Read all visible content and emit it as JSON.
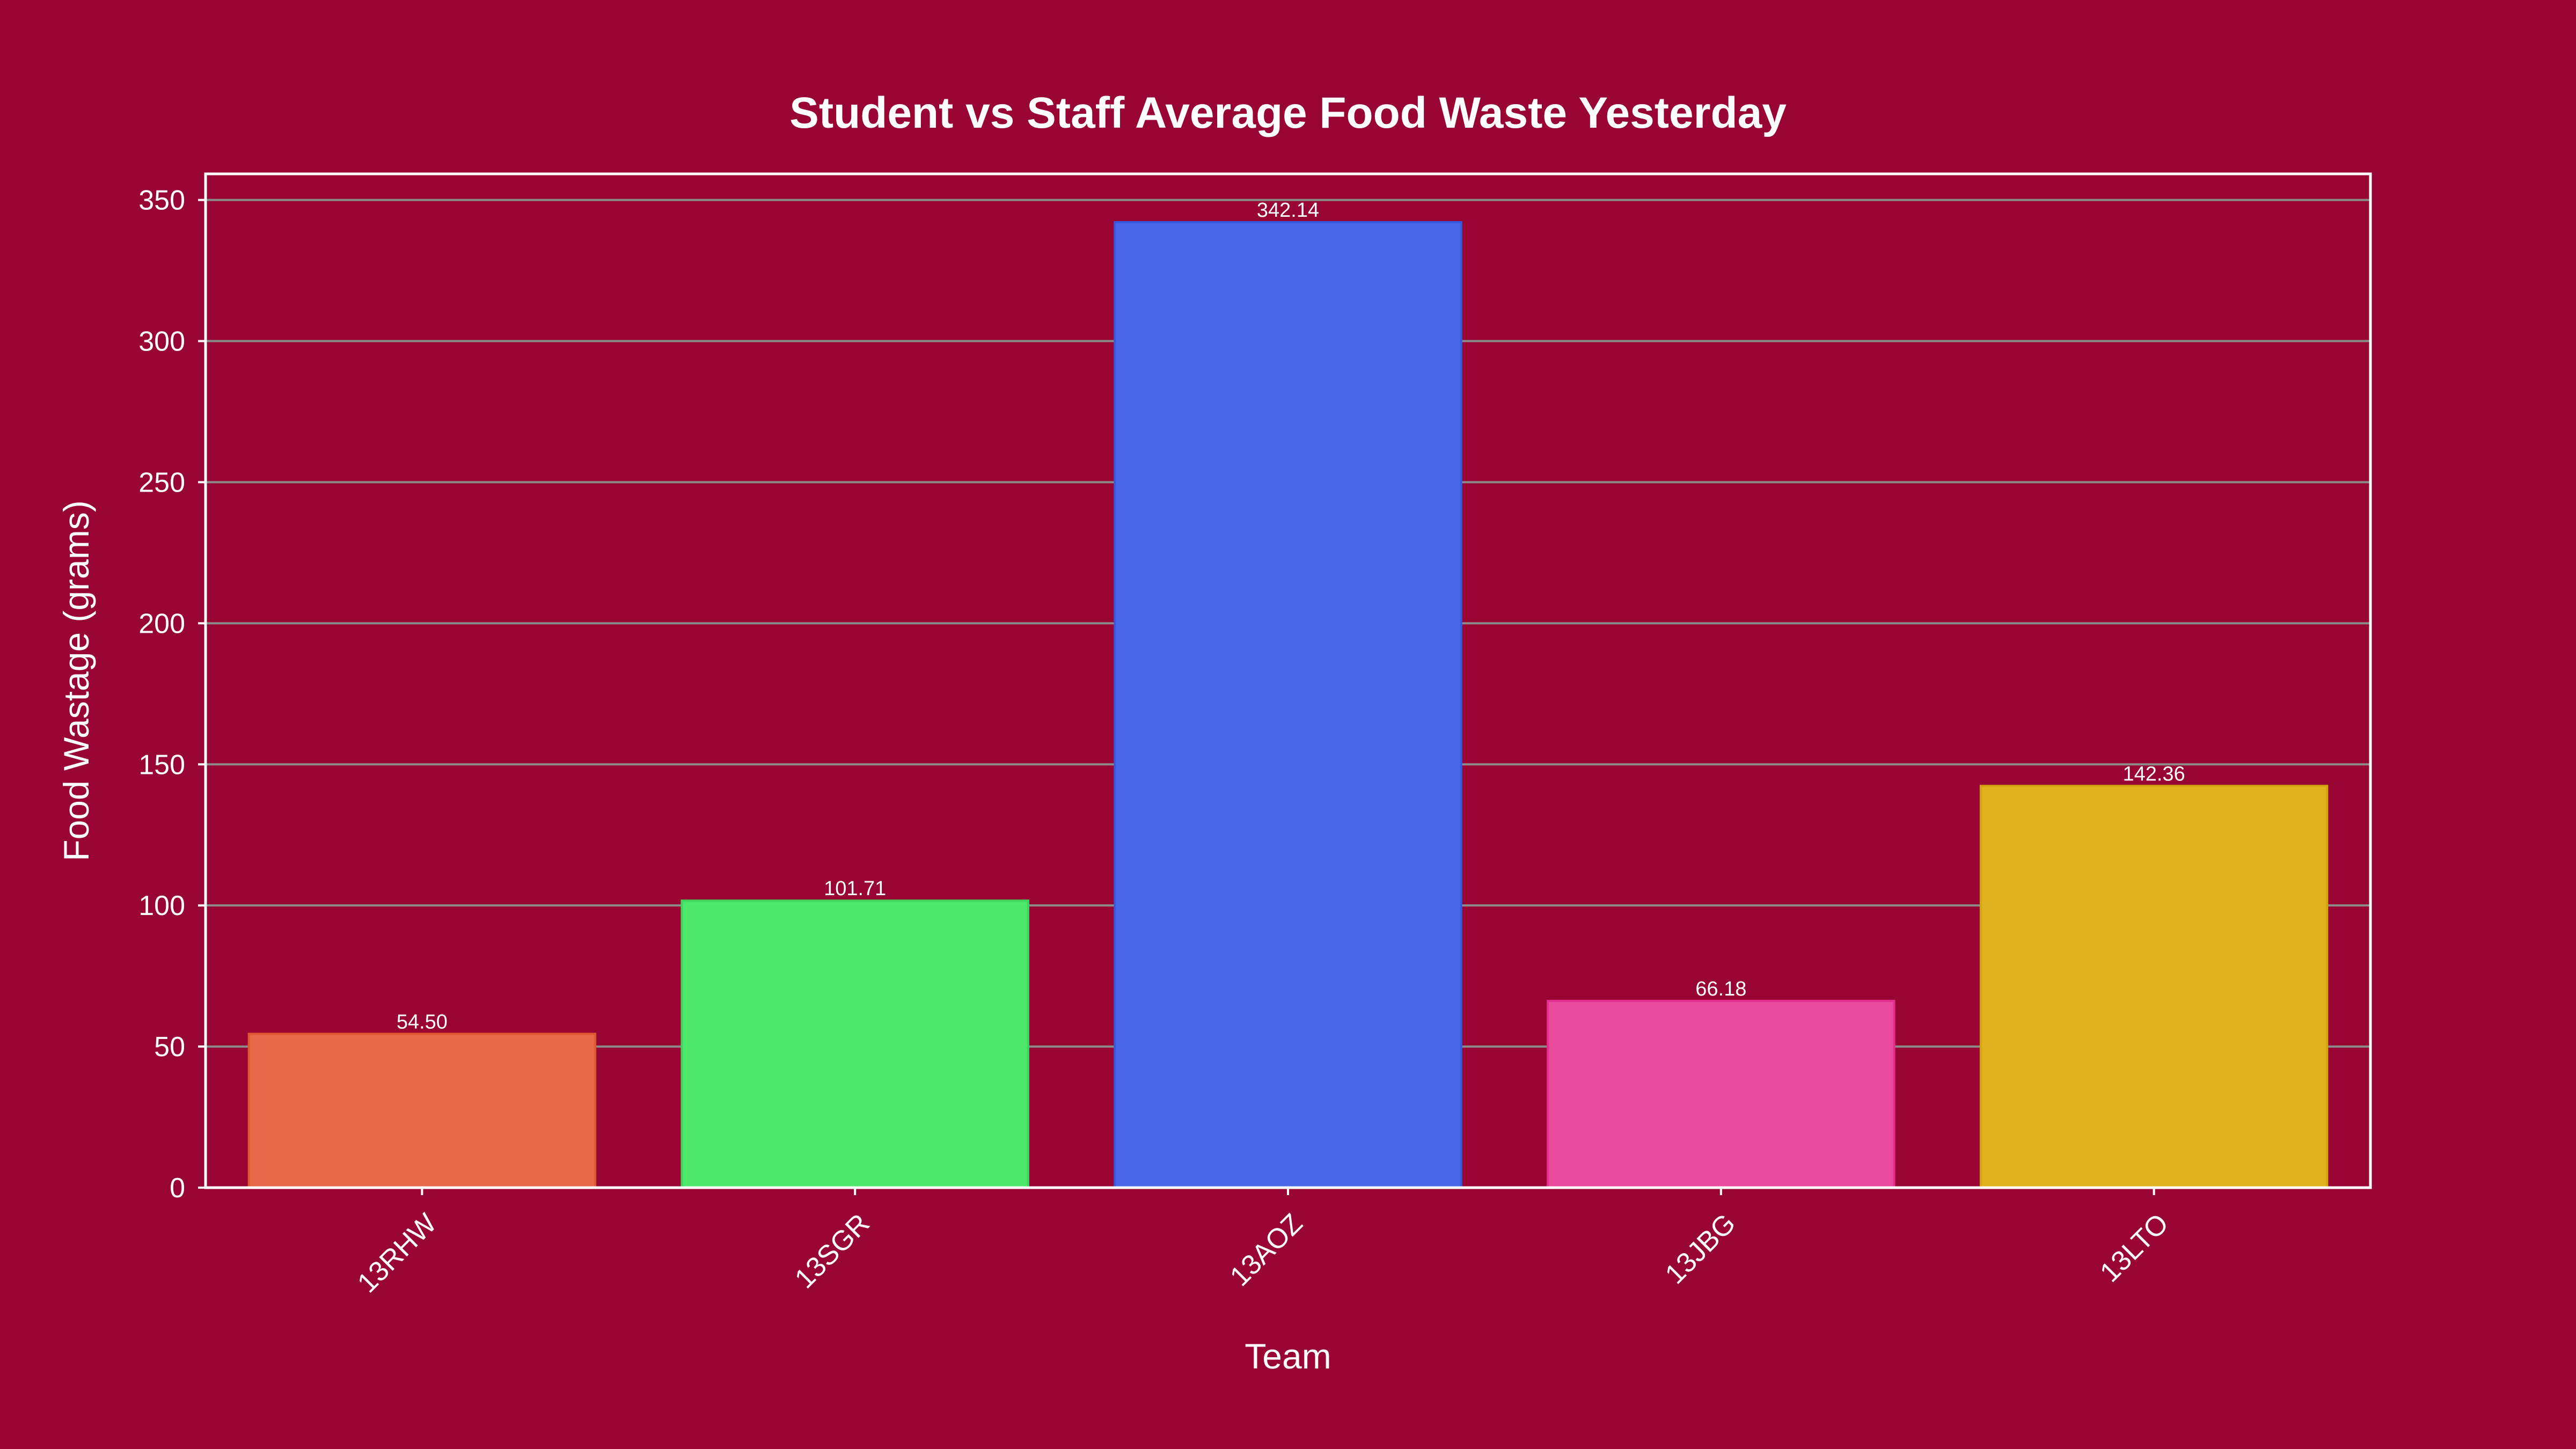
{
  "colors": {
    "background": "#990532",
    "grid": "#8c8c8c",
    "frame": "#ffffff",
    "text": "#ffffff"
  },
  "chart_data": {
    "type": "bar",
    "title": "Student vs Staff Average Food Waste Yesterday",
    "xlabel": "Team",
    "ylabel": "Food Wastage (grams)",
    "categories": [
      "13RHW",
      "13SGR",
      "13AOZ",
      "13JBG",
      "13LTO"
    ],
    "values": [
      54.5,
      101.71,
      342.14,
      66.18,
      142.36
    ],
    "value_labels": [
      "54.50",
      "101.71",
      "342.14",
      "66.18",
      "142.36"
    ],
    "bar_colors": [
      "#e8684a",
      "#4de86c",
      "#4a68e8",
      "#e84a9e",
      "#dfb21f"
    ],
    "bar_edge_colors": [
      "#e0582e",
      "#3fd65e",
      "#3558e0",
      "#e32d8f",
      "#d4a512"
    ],
    "ylim": [
      0,
      359.25
    ],
    "yticks": [
      0,
      50,
      100,
      150,
      200,
      250,
      300,
      350
    ],
    "grid": true,
    "grid_axis": "y",
    "x_tick_rotation": -45
  }
}
